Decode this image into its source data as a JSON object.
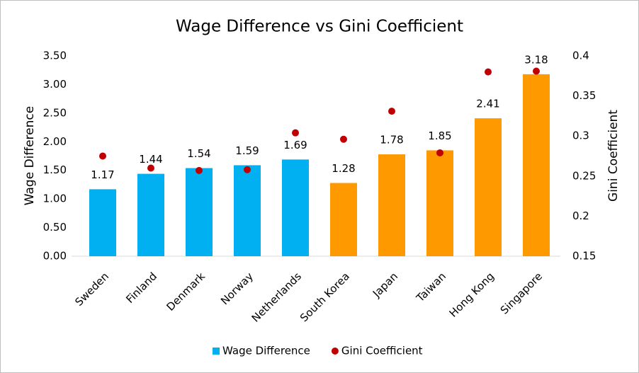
{
  "chart_data": {
    "type": "bar_scatter",
    "title": "Wage Difference vs Gini Coefficient",
    "categories": [
      "Sweden",
      "Finland",
      "Denmark",
      "Norway",
      "Netherlands",
      "South Korea",
      "Japan",
      "Taiwan",
      "Hong Kong",
      "Singapore"
    ],
    "y_label": "Wage Difference",
    "y2_label": "Gini Coefficient",
    "series": [
      {
        "name": "Wage Difference",
        "type": "bar",
        "color": "#00b0f0",
        "colors": [
          "#00b0f0",
          "#00b0f0",
          "#00b0f0",
          "#00b0f0",
          "#00b0f0",
          "#ff9900",
          "#ff9900",
          "#ff9900",
          "#ff9900",
          "#ff9900"
        ],
        "values": [
          1.17,
          1.44,
          1.54,
          1.59,
          1.69,
          1.28,
          1.78,
          1.85,
          2.41,
          3.18
        ]
      },
      {
        "name": "Gini Coefficient",
        "type": "scatter",
        "axis": "y2",
        "color": "#c00000",
        "values": [
          0.275,
          0.26,
          0.257,
          0.258,
          0.304,
          0.296,
          0.331,
          0.279,
          0.38,
          0.381
        ]
      }
    ],
    "ylim": [
      0,
      3.5
    ],
    "yticks": [
      {
        "value": 0,
        "label": "0.00"
      },
      {
        "value": 0.5,
        "label": "0.50"
      },
      {
        "value": 1,
        "label": "1.00"
      },
      {
        "value": 1.5,
        "label": "1.50"
      },
      {
        "value": 2,
        "label": "2.00"
      },
      {
        "value": 2.5,
        "label": "2.50"
      },
      {
        "value": 3,
        "label": "3.00"
      },
      {
        "value": 3.5,
        "label": "3.50"
      }
    ],
    "y2lim": [
      0.15,
      0.4
    ],
    "y2ticks": [
      0.15,
      0.2,
      0.25,
      0.3,
      0.35,
      0.4
    ],
    "grid": false,
    "legend": "bottom"
  }
}
